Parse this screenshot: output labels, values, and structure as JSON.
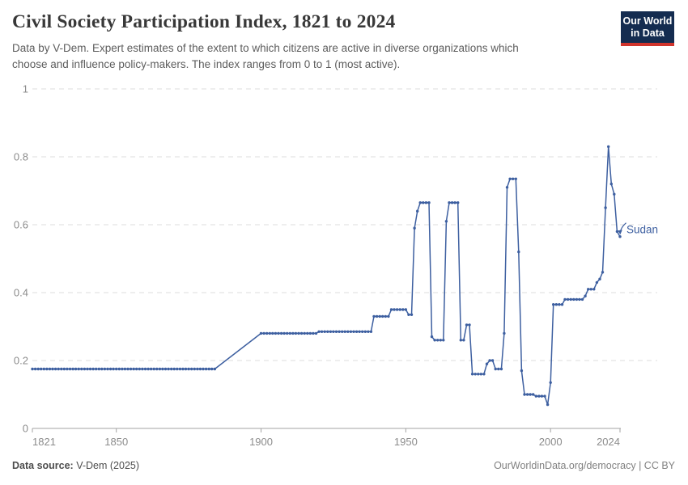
{
  "header": {
    "title": "Civil Society Participation Index, 1821 to 2024",
    "subtitle_lines": [
      "Data by V-Dem. Expert estimates of the extent to which citizens are active in diverse organizations which",
      "choose and influence policy-makers. The index ranges from 0 to 1 (most active)."
    ],
    "logo_lines": [
      "Our World",
      "in Data"
    ],
    "logo_bg_color": "#142c50",
    "logo_stripe_color": "#d0342c"
  },
  "chart_data": {
    "type": "line",
    "title": "Civil Society Participation Index, 1821 to 2024",
    "entity": "Sudan",
    "xlabel": "",
    "ylabel": "",
    "x_range": [
      1821,
      2024
    ],
    "y_range": [
      0,
      1
    ],
    "xticks": [
      1821,
      1850,
      1900,
      1950,
      2000,
      2024
    ],
    "yticks": [
      0,
      0.2,
      0.4,
      0.6,
      0.8,
      1
    ],
    "grid": "dashed-horizontal",
    "legend_position": "end-of-line-label",
    "line_color": "#3d5fa0",
    "gridline_color": "#dcdcdc",
    "axis_color": "#a3a3a3",
    "tick_label_color": "#8c8c8c",
    "series": [
      {
        "name": "Sudan",
        "runs_note": "each run is [startYear, endYear, indexValue]; yearly data points exist for every year inside a run; the 1884-1900 ramp is a straight interpolation between runs",
        "runs": [
          [
            1821,
            1884,
            0.175
          ],
          [
            1900,
            1919,
            0.28
          ],
          [
            1920,
            1938,
            0.285
          ],
          [
            1939,
            1944,
            0.33
          ],
          [
            1945,
            1950,
            0.35
          ],
          [
            1951,
            1952,
            0.335
          ],
          [
            1953,
            1953,
            0.59
          ],
          [
            1954,
            1954,
            0.64
          ],
          [
            1955,
            1958,
            0.665
          ],
          [
            1959,
            1959,
            0.27
          ],
          [
            1960,
            1963,
            0.26
          ],
          [
            1964,
            1964,
            0.61
          ],
          [
            1965,
            1968,
            0.665
          ],
          [
            1969,
            1970,
            0.26
          ],
          [
            1971,
            1972,
            0.305
          ],
          [
            1973,
            1977,
            0.16
          ],
          [
            1978,
            1978,
            0.19
          ],
          [
            1979,
            1980,
            0.2
          ],
          [
            1981,
            1983,
            0.175
          ],
          [
            1984,
            1984,
            0.28
          ],
          [
            1985,
            1985,
            0.71
          ],
          [
            1986,
            1988,
            0.735
          ],
          [
            1989,
            1989,
            0.52
          ],
          [
            1990,
            1990,
            0.17
          ],
          [
            1991,
            1994,
            0.1
          ],
          [
            1995,
            1998,
            0.095
          ],
          [
            1999,
            1999,
            0.07
          ],
          [
            2000,
            2000,
            0.135
          ],
          [
            2001,
            2004,
            0.365
          ],
          [
            2005,
            2011,
            0.38
          ],
          [
            2012,
            2012,
            0.39
          ],
          [
            2013,
            2015,
            0.41
          ],
          [
            2016,
            2016,
            0.43
          ],
          [
            2017,
            2017,
            0.44
          ],
          [
            2018,
            2018,
            0.46
          ],
          [
            2019,
            2019,
            0.65
          ],
          [
            2020,
            2020,
            0.83
          ],
          [
            2021,
            2021,
            0.72
          ],
          [
            2022,
            2022,
            0.69
          ],
          [
            2023,
            2023,
            0.58
          ],
          [
            2024,
            2024,
            0.565
          ]
        ]
      }
    ]
  },
  "footer": {
    "source_label": "Data source:",
    "source_text": "V-Dem (2025)",
    "credit_text": "OurWorldinData.org/democracy | CC BY"
  }
}
